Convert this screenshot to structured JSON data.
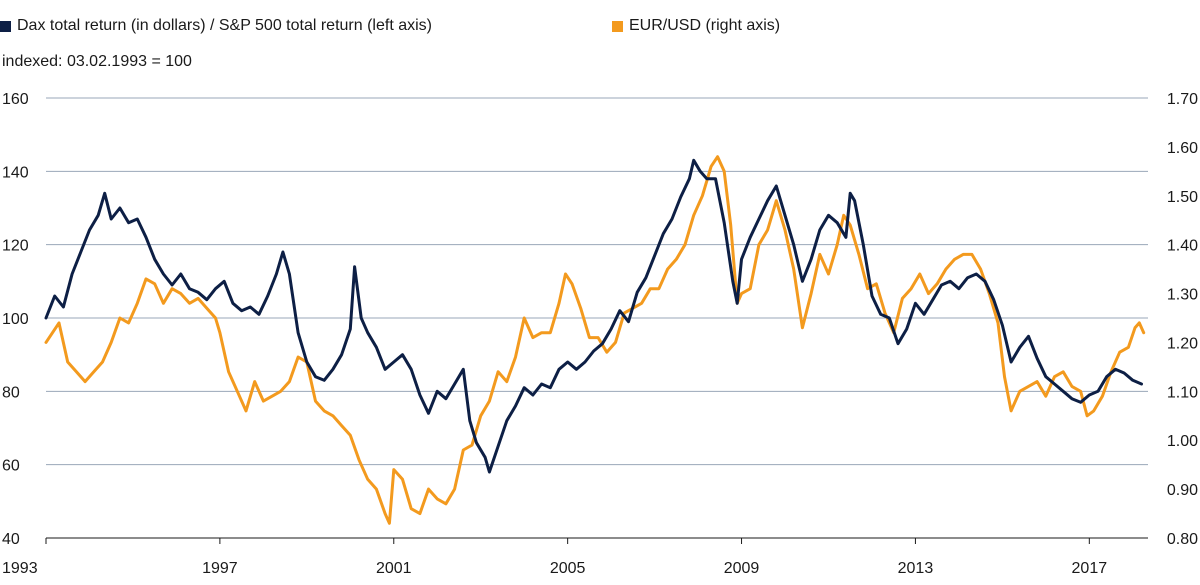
{
  "chart_data": {
    "type": "line",
    "subtitle": "indexed: 03.02.1993 = 100",
    "x_ticks": [
      "1993",
      "1997",
      "2001",
      "2005",
      "2009",
      "2013",
      "2017"
    ],
    "x_range": [
      1993.0,
      2018.35
    ],
    "y_left": {
      "ticks": [
        "40",
        "60",
        "80",
        "100",
        "120",
        "140",
        "160"
      ],
      "range": [
        40,
        160
      ]
    },
    "y_right": {
      "ticks": [
        "0.80",
        "0.90",
        "1.00",
        "1.10",
        "1.20",
        "1.30",
        "1.40",
        "1.50",
        "1.60",
        "1.70"
      ],
      "range": [
        0.8,
        1.7
      ]
    },
    "grid": true,
    "legend_position": "top",
    "series": [
      {
        "name": "Dax total return (in dollars) / S&P 500 total return (left axis)",
        "axis": "left",
        "color": "#0d1f45",
        "points": [
          [
            1993.0,
            100
          ],
          [
            1993.2,
            106
          ],
          [
            1993.4,
            103
          ],
          [
            1993.6,
            112
          ],
          [
            1993.8,
            118
          ],
          [
            1994.0,
            124
          ],
          [
            1994.2,
            128
          ],
          [
            1994.35,
            134
          ],
          [
            1994.5,
            127
          ],
          [
            1994.7,
            130
          ],
          [
            1994.9,
            126
          ],
          [
            1995.1,
            127
          ],
          [
            1995.3,
            122
          ],
          [
            1995.5,
            116
          ],
          [
            1995.7,
            112
          ],
          [
            1995.9,
            109
          ],
          [
            1996.1,
            112
          ],
          [
            1996.3,
            108
          ],
          [
            1996.5,
            107
          ],
          [
            1996.7,
            105
          ],
          [
            1996.9,
            108
          ],
          [
            1997.1,
            110
          ],
          [
            1997.3,
            104
          ],
          [
            1997.5,
            102
          ],
          [
            1997.7,
            103
          ],
          [
            1997.9,
            101
          ],
          [
            1998.1,
            106
          ],
          [
            1998.3,
            112
          ],
          [
            1998.45,
            118
          ],
          [
            1998.6,
            112
          ],
          [
            1998.8,
            96
          ],
          [
            1999.0,
            88
          ],
          [
            1999.2,
            84
          ],
          [
            1999.4,
            83
          ],
          [
            1999.6,
            86
          ],
          [
            1999.8,
            90
          ],
          [
            2000.0,
            97
          ],
          [
            2000.1,
            114
          ],
          [
            2000.25,
            100
          ],
          [
            2000.4,
            96
          ],
          [
            2000.6,
            92
          ],
          [
            2000.8,
            86
          ],
          [
            2001.0,
            88
          ],
          [
            2001.2,
            90
          ],
          [
            2001.4,
            86
          ],
          [
            2001.6,
            79
          ],
          [
            2001.8,
            74
          ],
          [
            2002.0,
            80
          ],
          [
            2002.2,
            78
          ],
          [
            2002.4,
            82
          ],
          [
            2002.6,
            86
          ],
          [
            2002.75,
            72
          ],
          [
            2002.9,
            66
          ],
          [
            2003.1,
            62
          ],
          [
            2003.2,
            58
          ],
          [
            2003.4,
            65
          ],
          [
            2003.6,
            72
          ],
          [
            2003.8,
            76
          ],
          [
            2004.0,
            81
          ],
          [
            2004.2,
            79
          ],
          [
            2004.4,
            82
          ],
          [
            2004.6,
            81
          ],
          [
            2004.8,
            86
          ],
          [
            2005.0,
            88
          ],
          [
            2005.2,
            86
          ],
          [
            2005.4,
            88
          ],
          [
            2005.6,
            91
          ],
          [
            2005.8,
            93
          ],
          [
            2006.0,
            97
          ],
          [
            2006.2,
            102
          ],
          [
            2006.4,
            99
          ],
          [
            2006.6,
            107
          ],
          [
            2006.8,
            111
          ],
          [
            2007.0,
            117
          ],
          [
            2007.2,
            123
          ],
          [
            2007.4,
            127
          ],
          [
            2007.6,
            133
          ],
          [
            2007.8,
            138
          ],
          [
            2007.9,
            143
          ],
          [
            2008.05,
            140
          ],
          [
            2008.2,
            138
          ],
          [
            2008.4,
            138
          ],
          [
            2008.6,
            126
          ],
          [
            2008.8,
            110
          ],
          [
            2008.9,
            104
          ],
          [
            2009.0,
            116
          ],
          [
            2009.2,
            122
          ],
          [
            2009.4,
            127
          ],
          [
            2009.6,
            132
          ],
          [
            2009.8,
            136
          ],
          [
            2010.0,
            128
          ],
          [
            2010.2,
            120
          ],
          [
            2010.4,
            110
          ],
          [
            2010.6,
            116
          ],
          [
            2010.8,
            124
          ],
          [
            2011.0,
            128
          ],
          [
            2011.2,
            126
          ],
          [
            2011.4,
            122
          ],
          [
            2011.5,
            134
          ],
          [
            2011.6,
            132
          ],
          [
            2011.8,
            120
          ],
          [
            2012.0,
            106
          ],
          [
            2012.2,
            101
          ],
          [
            2012.4,
            100
          ],
          [
            2012.6,
            93
          ],
          [
            2012.8,
            97
          ],
          [
            2013.0,
            104
          ],
          [
            2013.2,
            101
          ],
          [
            2013.4,
            105
          ],
          [
            2013.6,
            109
          ],
          [
            2013.8,
            110
          ],
          [
            2014.0,
            108
          ],
          [
            2014.2,
            111
          ],
          [
            2014.4,
            112
          ],
          [
            2014.6,
            110
          ],
          [
            2014.8,
            105
          ],
          [
            2015.0,
            98
          ],
          [
            2015.2,
            88
          ],
          [
            2015.4,
            92
          ],
          [
            2015.6,
            95
          ],
          [
            2015.8,
            89
          ],
          [
            2016.0,
            84
          ],
          [
            2016.2,
            82
          ],
          [
            2016.4,
            80
          ],
          [
            2016.6,
            78
          ],
          [
            2016.8,
            77
          ],
          [
            2017.0,
            79
          ],
          [
            2017.2,
            80
          ],
          [
            2017.4,
            84
          ],
          [
            2017.6,
            86
          ],
          [
            2017.8,
            85
          ],
          [
            2018.0,
            83
          ],
          [
            2018.2,
            82
          ]
        ]
      },
      {
        "name": "EUR/USD (right axis)",
        "axis": "right",
        "color": "#f39a1e",
        "points": [
          [
            1993.0,
            1.2
          ],
          [
            1993.15,
            1.22
          ],
          [
            1993.3,
            1.24
          ],
          [
            1993.5,
            1.16
          ],
          [
            1993.7,
            1.14
          ],
          [
            1993.9,
            1.12
          ],
          [
            1994.1,
            1.14
          ],
          [
            1994.3,
            1.16
          ],
          [
            1994.5,
            1.2
          ],
          [
            1994.7,
            1.25
          ],
          [
            1994.9,
            1.24
          ],
          [
            1995.1,
            1.28
          ],
          [
            1995.3,
            1.33
          ],
          [
            1995.5,
            1.32
          ],
          [
            1995.7,
            1.28
          ],
          [
            1995.9,
            1.31
          ],
          [
            1996.1,
            1.3
          ],
          [
            1996.3,
            1.28
          ],
          [
            1996.5,
            1.29
          ],
          [
            1996.7,
            1.27
          ],
          [
            1996.9,
            1.25
          ],
          [
            1997.0,
            1.22
          ],
          [
            1997.2,
            1.14
          ],
          [
            1997.4,
            1.1
          ],
          [
            1997.6,
            1.06
          ],
          [
            1997.8,
            1.12
          ],
          [
            1998.0,
            1.08
          ],
          [
            1998.2,
            1.09
          ],
          [
            1998.4,
            1.1
          ],
          [
            1998.6,
            1.12
          ],
          [
            1998.8,
            1.17
          ],
          [
            1999.0,
            1.16
          ],
          [
            1999.2,
            1.08
          ],
          [
            1999.4,
            1.06
          ],
          [
            1999.6,
            1.05
          ],
          [
            1999.8,
            1.03
          ],
          [
            2000.0,
            1.01
          ],
          [
            2000.2,
            0.96
          ],
          [
            2000.4,
            0.92
          ],
          [
            2000.6,
            0.9
          ],
          [
            2000.8,
            0.85
          ],
          [
            2000.9,
            0.83
          ],
          [
            2001.0,
            0.94
          ],
          [
            2001.2,
            0.92
          ],
          [
            2001.4,
            0.86
          ],
          [
            2001.6,
            0.85
          ],
          [
            2001.8,
            0.9
          ],
          [
            2002.0,
            0.88
          ],
          [
            2002.2,
            0.87
          ],
          [
            2002.4,
            0.9
          ],
          [
            2002.6,
            0.98
          ],
          [
            2002.8,
            0.99
          ],
          [
            2003.0,
            1.05
          ],
          [
            2003.2,
            1.08
          ],
          [
            2003.4,
            1.14
          ],
          [
            2003.6,
            1.12
          ],
          [
            2003.8,
            1.17
          ],
          [
            2004.0,
            1.25
          ],
          [
            2004.2,
            1.21
          ],
          [
            2004.4,
            1.22
          ],
          [
            2004.6,
            1.22
          ],
          [
            2004.8,
            1.28
          ],
          [
            2004.95,
            1.34
          ],
          [
            2005.1,
            1.32
          ],
          [
            2005.3,
            1.27
          ],
          [
            2005.5,
            1.21
          ],
          [
            2005.7,
            1.21
          ],
          [
            2005.9,
            1.18
          ],
          [
            2006.1,
            1.2
          ],
          [
            2006.3,
            1.26
          ],
          [
            2006.5,
            1.27
          ],
          [
            2006.7,
            1.28
          ],
          [
            2006.9,
            1.31
          ],
          [
            2007.1,
            1.31
          ],
          [
            2007.3,
            1.35
          ],
          [
            2007.5,
            1.37
          ],
          [
            2007.7,
            1.4
          ],
          [
            2007.9,
            1.46
          ],
          [
            2008.1,
            1.5
          ],
          [
            2008.3,
            1.56
          ],
          [
            2008.45,
            1.58
          ],
          [
            2008.6,
            1.55
          ],
          [
            2008.75,
            1.44
          ],
          [
            2008.9,
            1.28
          ],
          [
            2009.0,
            1.3
          ],
          [
            2009.2,
            1.31
          ],
          [
            2009.4,
            1.4
          ],
          [
            2009.6,
            1.43
          ],
          [
            2009.8,
            1.49
          ],
          [
            2010.0,
            1.43
          ],
          [
            2010.2,
            1.35
          ],
          [
            2010.4,
            1.23
          ],
          [
            2010.6,
            1.3
          ],
          [
            2010.8,
            1.38
          ],
          [
            2011.0,
            1.34
          ],
          [
            2011.2,
            1.4
          ],
          [
            2011.35,
            1.46
          ],
          [
            2011.5,
            1.44
          ],
          [
            2011.7,
            1.38
          ],
          [
            2011.9,
            1.31
          ],
          [
            2012.1,
            1.32
          ],
          [
            2012.3,
            1.26
          ],
          [
            2012.5,
            1.22
          ],
          [
            2012.7,
            1.29
          ],
          [
            2012.9,
            1.31
          ],
          [
            2013.1,
            1.34
          ],
          [
            2013.3,
            1.3
          ],
          [
            2013.5,
            1.32
          ],
          [
            2013.7,
            1.35
          ],
          [
            2013.9,
            1.37
          ],
          [
            2014.1,
            1.38
          ],
          [
            2014.3,
            1.38
          ],
          [
            2014.5,
            1.35
          ],
          [
            2014.7,
            1.3
          ],
          [
            2014.9,
            1.24
          ],
          [
            2015.05,
            1.13
          ],
          [
            2015.2,
            1.06
          ],
          [
            2015.4,
            1.1
          ],
          [
            2015.6,
            1.11
          ],
          [
            2015.8,
            1.12
          ],
          [
            2016.0,
            1.09
          ],
          [
            2016.2,
            1.13
          ],
          [
            2016.4,
            1.14
          ],
          [
            2016.6,
            1.11
          ],
          [
            2016.8,
            1.1
          ],
          [
            2016.95,
            1.05
          ],
          [
            2017.1,
            1.06
          ],
          [
            2017.3,
            1.09
          ],
          [
            2017.5,
            1.14
          ],
          [
            2017.7,
            1.18
          ],
          [
            2017.9,
            1.19
          ],
          [
            2018.05,
            1.23
          ],
          [
            2018.15,
            1.24
          ],
          [
            2018.25,
            1.22
          ]
        ]
      }
    ]
  }
}
